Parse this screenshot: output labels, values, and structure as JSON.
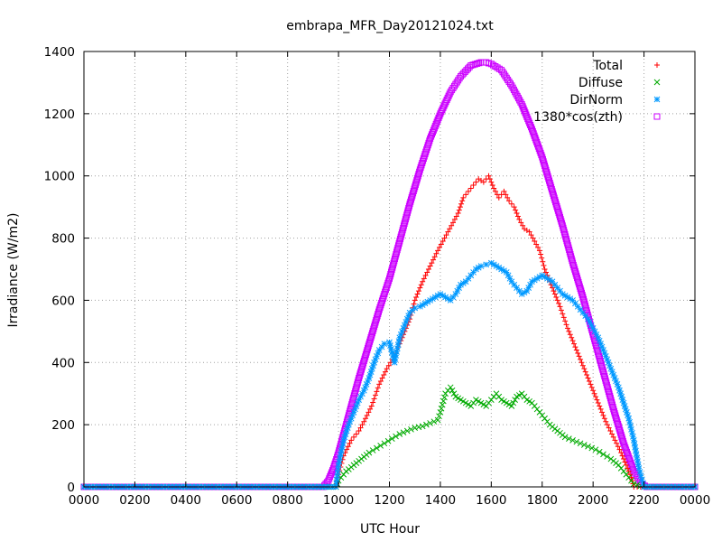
{
  "chart_data": {
    "type": "scatter",
    "title": "embrapa_MFR_Day20121024.txt",
    "xlabel": "UTC Hour",
    "ylabel": "Irradiance (W/m2)",
    "xlim": [
      0,
      24
    ],
    "ylim": [
      0,
      1400
    ],
    "grid": true,
    "legend_position": "top-right",
    "x_ticks": [
      {
        "value": 0,
        "label": "0000"
      },
      {
        "value": 2,
        "label": "0200"
      },
      {
        "value": 4,
        "label": "0400"
      },
      {
        "value": 6,
        "label": "0600"
      },
      {
        "value": 8,
        "label": "0800"
      },
      {
        "value": 10,
        "label": "1000"
      },
      {
        "value": 12,
        "label": "1200"
      },
      {
        "value": 14,
        "label": "1400"
      },
      {
        "value": 16,
        "label": "1600"
      },
      {
        "value": 18,
        "label": "1800"
      },
      {
        "value": 20,
        "label": "2000"
      },
      {
        "value": 22,
        "label": "2200"
      },
      {
        "value": 24,
        "label": "0000"
      }
    ],
    "y_ticks": [
      {
        "value": 0,
        "label": "0"
      },
      {
        "value": 200,
        "label": "200"
      },
      {
        "value": 400,
        "label": "400"
      },
      {
        "value": 600,
        "label": "600"
      },
      {
        "value": 800,
        "label": "800"
      },
      {
        "value": 1000,
        "label": "1000"
      },
      {
        "value": 1200,
        "label": "1200"
      },
      {
        "value": 1400,
        "label": "1400"
      }
    ],
    "series": [
      {
        "name": "Total",
        "marker": "plus",
        "color": "#ff0000",
        "x": [
          0,
          9.5,
          9.9,
          10.0,
          10.2,
          10.5,
          10.8,
          11.0,
          11.3,
          11.6,
          11.9,
          12.2,
          12.5,
          12.8,
          13.0,
          13.3,
          13.6,
          13.9,
          14.1,
          14.3,
          14.5,
          14.7,
          14.9,
          15.1,
          15.3,
          15.5,
          15.7,
          15.9,
          16.1,
          16.3,
          16.5,
          16.7,
          16.9,
          17.1,
          17.3,
          17.5,
          17.7,
          17.9,
          18.1,
          18.4,
          18.7,
          19.0,
          19.3,
          19.6,
          19.9,
          20.2,
          20.5,
          20.8,
          21.1,
          21.3,
          21.5,
          21.6,
          22.0,
          24
        ],
        "y": [
          0,
          0,
          0,
          40,
          100,
          150,
          180,
          210,
          260,
          330,
          380,
          420,
          480,
          540,
          600,
          660,
          710,
          760,
          790,
          820,
          850,
          880,
          930,
          950,
          970,
          990,
          980,
          1000,
          960,
          930,
          950,
          920,
          900,
          860,
          830,
          820,
          790,
          760,
          700,
          640,
          580,
          510,
          450,
          390,
          330,
          270,
          210,
          160,
          110,
          70,
          30,
          0,
          0,
          0
        ]
      },
      {
        "name": "Diffuse",
        "marker": "cross",
        "color": "#00aa00",
        "x": [
          0,
          9.5,
          9.9,
          10.0,
          10.3,
          10.6,
          10.9,
          11.2,
          11.5,
          11.8,
          12.1,
          12.4,
          12.7,
          13.0,
          13.3,
          13.6,
          13.9,
          14.0,
          14.2,
          14.4,
          14.6,
          14.8,
          15.0,
          15.2,
          15.4,
          15.6,
          15.8,
          16.0,
          16.2,
          16.4,
          16.6,
          16.8,
          17.0,
          17.2,
          17.4,
          17.6,
          17.8,
          18.0,
          18.3,
          18.6,
          18.9,
          19.2,
          19.5,
          19.8,
          20.1,
          20.4,
          20.7,
          21.0,
          21.2,
          21.4,
          21.6,
          22.0,
          24
        ],
        "y": [
          0,
          0,
          0,
          20,
          50,
          70,
          90,
          110,
          125,
          140,
          155,
          170,
          180,
          190,
          195,
          205,
          215,
          240,
          300,
          320,
          290,
          280,
          270,
          260,
          280,
          270,
          260,
          280,
          300,
          280,
          270,
          260,
          290,
          300,
          280,
          270,
          250,
          230,
          200,
          180,
          160,
          150,
          140,
          130,
          120,
          105,
          90,
          70,
          50,
          30,
          10,
          0,
          0
        ]
      },
      {
        "name": "DirNorm",
        "marker": "star",
        "color": "#0099ff",
        "x": [
          0,
          9.5,
          9.9,
          10.0,
          10.2,
          10.4,
          10.6,
          10.8,
          11.0,
          11.2,
          11.4,
          11.6,
          11.8,
          12.0,
          12.2,
          12.4,
          12.6,
          12.8,
          13.0,
          13.2,
          13.4,
          13.6,
          13.8,
          14.0,
          14.2,
          14.4,
          14.6,
          14.8,
          15.0,
          15.2,
          15.4,
          15.6,
          15.8,
          16.0,
          16.2,
          16.4,
          16.6,
          16.8,
          17.0,
          17.2,
          17.4,
          17.6,
          17.8,
          18.0,
          18.2,
          18.4,
          18.6,
          18.8,
          19.0,
          19.2,
          19.4,
          19.6,
          19.8,
          20.0,
          20.2,
          20.4,
          20.6,
          20.8,
          21.0,
          21.2,
          21.4,
          21.6,
          21.8,
          22.0,
          24
        ],
        "y": [
          0,
          0,
          0,
          70,
          150,
          200,
          240,
          280,
          310,
          350,
          400,
          440,
          460,
          465,
          400,
          480,
          520,
          560,
          575,
          580,
          590,
          600,
          610,
          620,
          610,
          600,
          620,
          650,
          660,
          680,
          700,
          710,
          715,
          720,
          710,
          700,
          690,
          660,
          640,
          620,
          630,
          660,
          670,
          680,
          670,
          660,
          640,
          620,
          610,
          600,
          580,
          560,
          540,
          510,
          480,
          440,
          400,
          360,
          320,
          270,
          220,
          150,
          60,
          0,
          0
        ]
      },
      {
        "name": "1380*cos(zth)",
        "marker": "square",
        "color": "#cc00ff",
        "x": [
          0,
          9.4,
          9.6,
          9.8,
          10.0,
          10.4,
          10.8,
          11.2,
          11.6,
          12.0,
          12.4,
          12.8,
          13.2,
          13.6,
          14.0,
          14.4,
          14.8,
          15.2,
          15.6,
          15.8,
          16.0,
          16.4,
          16.8,
          17.2,
          17.6,
          18.0,
          18.4,
          18.8,
          19.2,
          19.6,
          20.0,
          20.4,
          20.8,
          21.2,
          21.6,
          21.9,
          22.1,
          22.3,
          24
        ],
        "y": [
          0,
          0,
          20,
          60,
          110,
          230,
          350,
          460,
          570,
          670,
          790,
          910,
          1020,
          1120,
          1200,
          1270,
          1320,
          1355,
          1365,
          1365,
          1360,
          1340,
          1290,
          1230,
          1150,
          1060,
          950,
          840,
          720,
          610,
          490,
          370,
          250,
          140,
          50,
          10,
          0,
          0,
          0
        ]
      }
    ]
  }
}
